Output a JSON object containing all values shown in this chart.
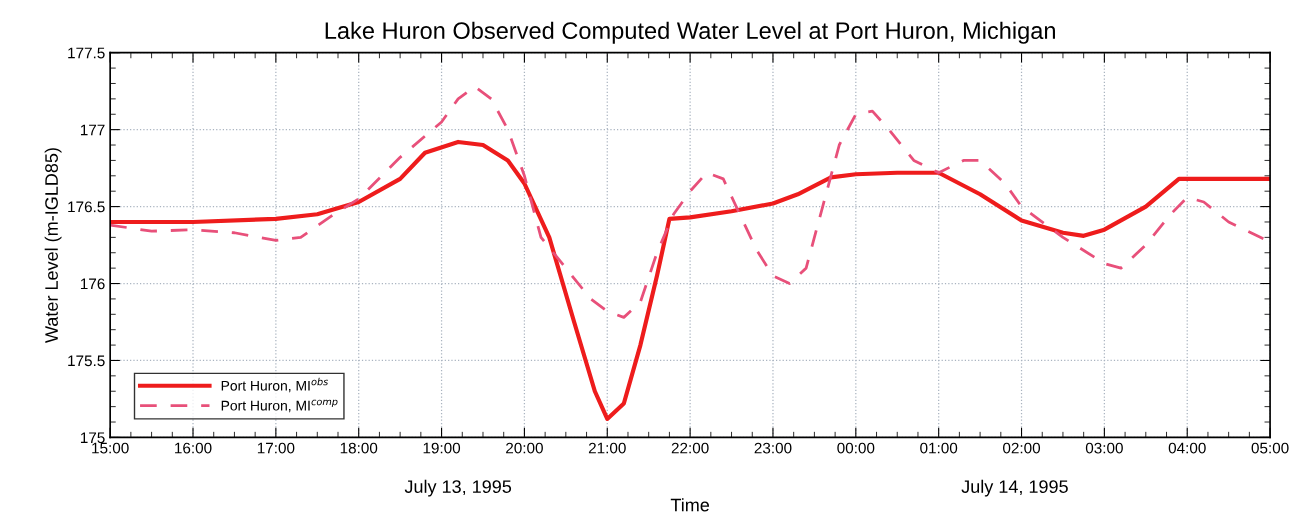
{
  "chart_data": {
    "type": "line",
    "title": "Lake Huron Observed Computed Water Level at Port Huron, Michigan",
    "xlabel": "Time",
    "ylabel": "Water Level (m-IGLD85)",
    "annotations": [
      "July 13, 1995",
      "July 14, 1995"
    ],
    "xlim": [
      "1995-07-13T15:00",
      "1995-07-14T05:00"
    ],
    "ylim": [
      175,
      177.5
    ],
    "xticks": [
      {
        "value": "1995-07-13T15:00",
        "label": "15:00"
      },
      {
        "value": "1995-07-13T16:00",
        "label": "16:00"
      },
      {
        "value": "1995-07-13T17:00",
        "label": "17:00"
      },
      {
        "value": "1995-07-13T18:00",
        "label": "18:00"
      },
      {
        "value": "1995-07-13T19:00",
        "label": "19:00"
      },
      {
        "value": "1995-07-13T20:00",
        "label": "20:00"
      },
      {
        "value": "1995-07-13T21:00",
        "label": "21:00"
      },
      {
        "value": "1995-07-13T22:00",
        "label": "22:00"
      },
      {
        "value": "1995-07-13T23:00",
        "label": "23:00"
      },
      {
        "value": "1995-07-14T00:00",
        "label": "00:00"
      },
      {
        "value": "1995-07-14T01:00",
        "label": "01:00"
      },
      {
        "value": "1995-07-14T02:00",
        "label": "02:00"
      },
      {
        "value": "1995-07-14T03:00",
        "label": "03:00"
      },
      {
        "value": "1995-07-14T04:00",
        "label": "04:00"
      },
      {
        "value": "1995-07-14T05:00",
        "label": "05:00"
      }
    ],
    "yticks": [
      175,
      175.5,
      176,
      176.5,
      177,
      177.5
    ],
    "grid": true,
    "legend": "bottom left",
    "series": [
      {
        "name": "Port Huron, MI$^{obs}$",
        "color": "#ee1c1c",
        "line_style": "solid",
        "x": [
          "1995-07-13T15:00",
          "1995-07-13T16:00",
          "1995-07-13T17:00",
          "1995-07-13T17:30",
          "1995-07-13T18:00",
          "1995-07-13T18:30",
          "1995-07-13T18:48",
          "1995-07-13T19:12",
          "1995-07-13T19:30",
          "1995-07-13T19:48",
          "1995-07-13T20:00",
          "1995-07-13T20:18",
          "1995-07-13T20:36",
          "1995-07-13T20:51",
          "1995-07-13T21:00",
          "1995-07-13T21:12",
          "1995-07-13T21:24",
          "1995-07-13T21:36",
          "1995-07-13T21:45",
          "1995-07-13T22:00",
          "1995-07-13T22:30",
          "1995-07-13T23:00",
          "1995-07-13T23:18",
          "1995-07-13T23:42",
          "1995-07-14T00:00",
          "1995-07-14T00:30",
          "1995-07-14T01:00",
          "1995-07-14T01:30",
          "1995-07-14T02:00",
          "1995-07-14T02:30",
          "1995-07-14T02:45",
          "1995-07-14T03:00",
          "1995-07-14T03:30",
          "1995-07-14T03:54",
          "1995-07-14T04:00",
          "1995-07-14T05:00"
        ],
        "values": [
          176.4,
          176.4,
          176.42,
          176.45,
          176.53,
          176.68,
          176.85,
          176.92,
          176.9,
          176.8,
          176.65,
          176.3,
          175.75,
          175.3,
          175.12,
          175.22,
          175.6,
          176.05,
          176.42,
          176.43,
          176.47,
          176.52,
          176.58,
          176.69,
          176.71,
          176.72,
          176.72,
          176.58,
          176.41,
          176.33,
          176.31,
          176.35,
          176.5,
          176.68,
          176.68,
          176.68
        ]
      },
      {
        "name": "Port Huron, MI$^{comp}$",
        "color": "#e8507a",
        "line_style": "dashed",
        "x": [
          "1995-07-13T15:00",
          "1995-07-13T15:30",
          "1995-07-13T16:00",
          "1995-07-13T16:30",
          "1995-07-13T17:00",
          "1995-07-13T17:18",
          "1995-07-13T17:42",
          "1995-07-13T18:00",
          "1995-07-13T18:30",
          "1995-07-13T19:00",
          "1995-07-13T19:12",
          "1995-07-13T19:24",
          "1995-07-13T19:36",
          "1995-07-13T19:48",
          "1995-07-13T20:00",
          "1995-07-13T20:12",
          "1995-07-13T20:30",
          "1995-07-13T20:48",
          "1995-07-13T21:00",
          "1995-07-13T21:12",
          "1995-07-13T21:24",
          "1995-07-13T21:36",
          "1995-07-13T21:48",
          "1995-07-13T22:00",
          "1995-07-13T22:12",
          "1995-07-13T22:24",
          "1995-07-13T22:36",
          "1995-07-13T22:48",
          "1995-07-13T23:00",
          "1995-07-13T23:12",
          "1995-07-13T23:24",
          "1995-07-13T23:36",
          "1995-07-13T23:48",
          "1995-07-14T00:00",
          "1995-07-14T00:12",
          "1995-07-14T00:24",
          "1995-07-14T00:42",
          "1995-07-14T01:00",
          "1995-07-14T01:18",
          "1995-07-14T01:30",
          "1995-07-14T01:48",
          "1995-07-14T02:00",
          "1995-07-14T02:30",
          "1995-07-14T03:00",
          "1995-07-14T03:12",
          "1995-07-14T03:30",
          "1995-07-14T03:48",
          "1995-07-14T04:00",
          "1995-07-14T04:12",
          "1995-07-14T04:30",
          "1995-07-14T05:00"
        ],
        "values": [
          176.38,
          176.34,
          176.35,
          176.33,
          176.28,
          176.3,
          176.45,
          176.55,
          176.82,
          177.05,
          177.2,
          177.28,
          177.2,
          177.0,
          176.7,
          176.3,
          176.1,
          175.9,
          175.82,
          175.78,
          175.88,
          176.2,
          176.45,
          176.6,
          176.72,
          176.68,
          176.45,
          176.22,
          176.05,
          176.0,
          176.1,
          176.5,
          176.9,
          177.1,
          177.12,
          177.0,
          176.8,
          176.72,
          176.8,
          176.8,
          176.65,
          176.5,
          176.3,
          176.13,
          176.1,
          176.25,
          176.45,
          176.56,
          176.53,
          176.4,
          176.27
        ]
      }
    ]
  }
}
